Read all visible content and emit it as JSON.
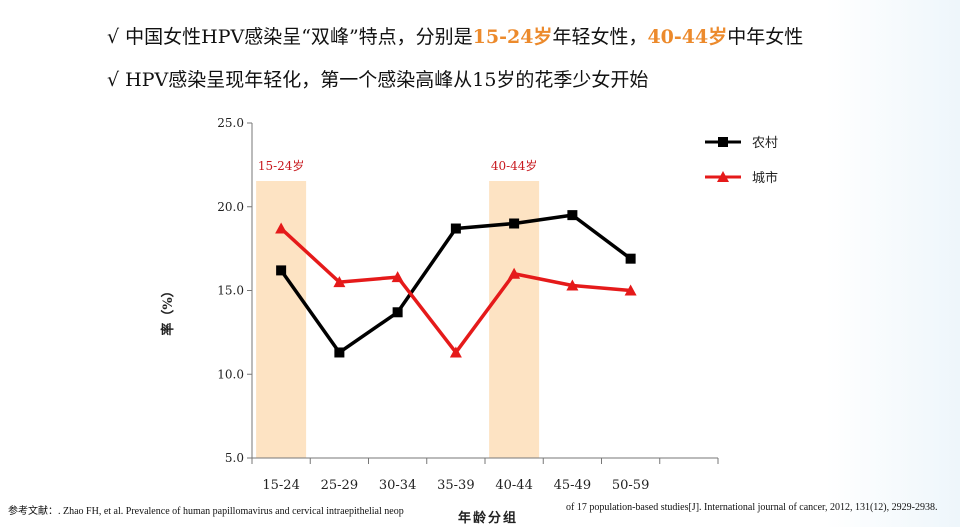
{
  "bullets": [
    {
      "check": "√",
      "parts": [
        {
          "text": " 中国女性HPV感染呈“双峰”特点，分别是",
          "hl": false
        },
        {
          "text": "15-24岁",
          "hl": true
        },
        {
          "text": "年轻女性，",
          "hl": false
        },
        {
          "text": "40-44岁",
          "hl": true
        },
        {
          "text": "中年女性",
          "hl": false
        }
      ]
    },
    {
      "check": "√",
      "parts": [
        {
          "text": " HPV感染呈现年轻化，第一个感染高峰从15岁的花季少女开始",
          "hl": false
        }
      ]
    }
  ],
  "reference": {
    "label": "参考文献：",
    "left_text": ". Zhao FH, et al. Prevalence of human papillomavirus and cervical intraepithelial neop",
    "right_text": "of 17 population-based studies[J]. International journal of cancer, 2012, 131(12), 2929-2938."
  },
  "colors": {
    "highlight_text": "#ec8a2c",
    "band_fill": "#fde3c3",
    "band_label": "#c8191e",
    "rural": "#000000",
    "urban": "#e51a1a",
    "axis": "#777777"
  },
  "chart_data": {
    "type": "line",
    "categories": [
      "15-24",
      "25-29",
      "30-34",
      "35-39",
      "40-44",
      "45-49",
      "50-59"
    ],
    "x_slot_count": 8,
    "xlabel": "年龄分组",
    "ylabel": "率（%）",
    "ylim": [
      5.0,
      25.0
    ],
    "yticks": [
      "25.0",
      "20.0",
      "15.0",
      "10.0",
      "5.0"
    ],
    "grid": false,
    "legend_position": "top-right",
    "series": [
      {
        "name": "农村",
        "marker": "square",
        "color": "#000000",
        "values": [
          16.2,
          11.3,
          13.7,
          18.7,
          19.0,
          19.5,
          16.9
        ]
      },
      {
        "name": "城市",
        "marker": "triangle",
        "color": "#e51a1a",
        "values": [
          18.7,
          15.5,
          15.8,
          11.3,
          16.0,
          15.3,
          15.0
        ]
      }
    ],
    "bands": [
      {
        "label": "15-24岁",
        "slot": 0
      },
      {
        "label": "40-44岁",
        "slot": 4
      }
    ]
  }
}
